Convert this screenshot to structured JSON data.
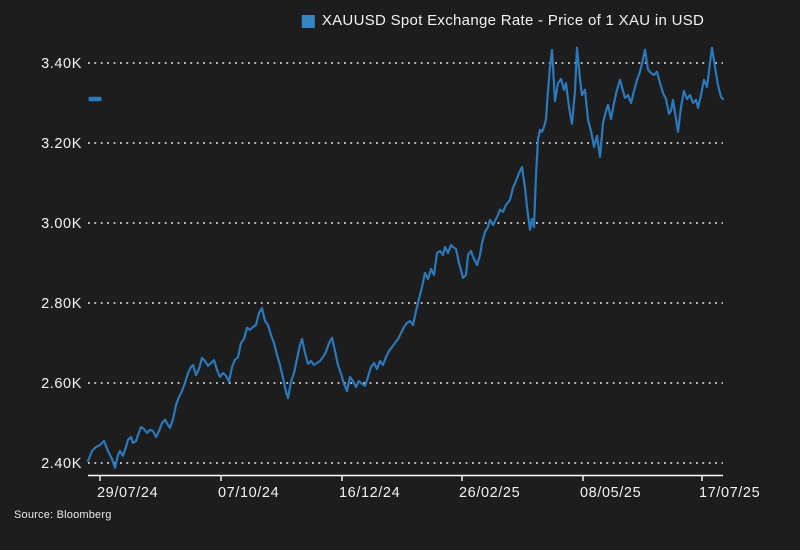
{
  "title": {
    "legend_label": "XAUUSD Spot Exchange Rate - Price of 1 XAU in USD"
  },
  "source": "Source: Bloomberg",
  "colors": {
    "background": "#1d1d1e",
    "line": "#2a79bb",
    "legend_swatch": "#3585c4",
    "text": "#f2f2f2",
    "grid": "#ffffff",
    "axis": "#ffffff",
    "last_value_marker": "#2a79bb"
  },
  "chart_data": {
    "type": "line",
    "title": "XAUUSD Spot Exchange Rate - Price of 1 XAU in USD",
    "xlabel": "",
    "ylabel": "",
    "unit": "K USD per 1 XAU",
    "grid": "horizontal-dotted",
    "legend_position": "top-center",
    "ylim": [
      2.37,
      3.46
    ],
    "y_ticks": [
      {
        "label": "3.40K",
        "value": 3.4
      },
      {
        "label": "3.20K",
        "value": 3.2
      },
      {
        "label": "3.00K",
        "value": 3.0
      },
      {
        "label": "2.80K",
        "value": 2.8
      },
      {
        "label": "2.60K",
        "value": 2.6
      },
      {
        "label": "2.40K",
        "value": 2.4
      }
    ],
    "x_ticks": [
      {
        "label": "29/07/24",
        "px": 100
      },
      {
        "label": "07/10/24",
        "px": 221
      },
      {
        "label": "16/12/24",
        "px": 342
      },
      {
        "label": "26/02/25",
        "px": 462
      },
      {
        "label": "08/05/25",
        "px": 583
      },
      {
        "label": "17/07/25",
        "px": 702
      }
    ],
    "last_value_marker": 3.31,
    "series": [
      {
        "name": "XAUUSD Spot Exchange Rate - Price of 1 XAU in USD",
        "points_format": "[x_px_on_time_axis, price_in_K_USD]",
        "points": [
          [
            88,
            2.405
          ],
          [
            92,
            2.43
          ],
          [
            96,
            2.44
          ],
          [
            100,
            2.445
          ],
          [
            104,
            2.455
          ],
          [
            108,
            2.43
          ],
          [
            112,
            2.41
          ],
          [
            115,
            2.388
          ],
          [
            118,
            2.42
          ],
          [
            120,
            2.43
          ],
          [
            123,
            2.418
          ],
          [
            126,
            2.44
          ],
          [
            128,
            2.458
          ],
          [
            131,
            2.465
          ],
          [
            133,
            2.45
          ],
          [
            136,
            2.455
          ],
          [
            138,
            2.47
          ],
          [
            141,
            2.49
          ],
          [
            144,
            2.485
          ],
          [
            147,
            2.475
          ],
          [
            150,
            2.483
          ],
          [
            153,
            2.48
          ],
          [
            156,
            2.465
          ],
          [
            159,
            2.48
          ],
          [
            162,
            2.5
          ],
          [
            165,
            2.508
          ],
          [
            168,
            2.495
          ],
          [
            170,
            2.488
          ],
          [
            173,
            2.51
          ],
          [
            176,
            2.545
          ],
          [
            179,
            2.565
          ],
          [
            182,
            2.58
          ],
          [
            185,
            2.6
          ],
          [
            188,
            2.625
          ],
          [
            191,
            2.64
          ],
          [
            193,
            2.645
          ],
          [
            196,
            2.62
          ],
          [
            199,
            2.635
          ],
          [
            202,
            2.663
          ],
          [
            205,
            2.655
          ],
          [
            208,
            2.643
          ],
          [
            211,
            2.65
          ],
          [
            214,
            2.657
          ],
          [
            217,
            2.633
          ],
          [
            220,
            2.615
          ],
          [
            223,
            2.625
          ],
          [
            226,
            2.618
          ],
          [
            229,
            2.603
          ],
          [
            232,
            2.64
          ],
          [
            235,
            2.658
          ],
          [
            238,
            2.665
          ],
          [
            241,
            2.7
          ],
          [
            244,
            2.71
          ],
          [
            247,
            2.738
          ],
          [
            250,
            2.733
          ],
          [
            253,
            2.74
          ],
          [
            256,
            2.745
          ],
          [
            259,
            2.775
          ],
          [
            262,
            2.787
          ],
          [
            265,
            2.755
          ],
          [
            268,
            2.745
          ],
          [
            271,
            2.72
          ],
          [
            274,
            2.7
          ],
          [
            277,
            2.67
          ],
          [
            280,
            2.645
          ],
          [
            283,
            2.613
          ],
          [
            286,
            2.578
          ],
          [
            288,
            2.562
          ],
          [
            291,
            2.603
          ],
          [
            294,
            2.625
          ],
          [
            297,
            2.66
          ],
          [
            300,
            2.695
          ],
          [
            302,
            2.71
          ],
          [
            305,
            2.675
          ],
          [
            308,
            2.648
          ],
          [
            311,
            2.655
          ],
          [
            314,
            2.645
          ],
          [
            317,
            2.65
          ],
          [
            320,
            2.655
          ],
          [
            323,
            2.665
          ],
          [
            326,
            2.678
          ],
          [
            329,
            2.7
          ],
          [
            332,
            2.713
          ],
          [
            335,
            2.68
          ],
          [
            338,
            2.645
          ],
          [
            341,
            2.623
          ],
          [
            344,
            2.598
          ],
          [
            347,
            2.58
          ],
          [
            350,
            2.615
          ],
          [
            353,
            2.605
          ],
          [
            356,
            2.59
          ],
          [
            359,
            2.605
          ],
          [
            362,
            2.598
          ],
          [
            365,
            2.593
          ],
          [
            368,
            2.615
          ],
          [
            371,
            2.64
          ],
          [
            374,
            2.65
          ],
          [
            377,
            2.635
          ],
          [
            380,
            2.655
          ],
          [
            383,
            2.645
          ],
          [
            386,
            2.665
          ],
          [
            389,
            2.68
          ],
          [
            392,
            2.69
          ],
          [
            395,
            2.7
          ],
          [
            398,
            2.71
          ],
          [
            401,
            2.725
          ],
          [
            404,
            2.74
          ],
          [
            407,
            2.75
          ],
          [
            410,
            2.755
          ],
          [
            413,
            2.745
          ],
          [
            416,
            2.78
          ],
          [
            419,
            2.81
          ],
          [
            422,
            2.84
          ],
          [
            425,
            2.875
          ],
          [
            428,
            2.86
          ],
          [
            431,
            2.885
          ],
          [
            434,
            2.87
          ],
          [
            437,
            2.925
          ],
          [
            440,
            2.93
          ],
          [
            443,
            2.92
          ],
          [
            445,
            2.94
          ],
          [
            448,
            2.925
          ],
          [
            451,
            2.945
          ],
          [
            453,
            2.94
          ],
          [
            456,
            2.935
          ],
          [
            459,
            2.9
          ],
          [
            463,
            2.863
          ],
          [
            466,
            2.87
          ],
          [
            468,
            2.92
          ],
          [
            471,
            2.93
          ],
          [
            474,
            2.91
          ],
          [
            477,
            2.895
          ],
          [
            480,
            2.92
          ],
          [
            482,
            2.95
          ],
          [
            485,
            2.978
          ],
          [
            488,
            2.99
          ],
          [
            490,
            3.008
          ],
          [
            493,
            2.995
          ],
          [
            497,
            3.015
          ],
          [
            500,
            3.033
          ],
          [
            503,
            3.028
          ],
          [
            506,
            3.045
          ],
          [
            510,
            3.058
          ],
          [
            513,
            3.088
          ],
          [
            516,
            3.105
          ],
          [
            519,
            3.125
          ],
          [
            522,
            3.14
          ],
          [
            525,
            3.088
          ],
          [
            527,
            3.04
          ],
          [
            530,
            2.983
          ],
          [
            532,
            3.01
          ],
          [
            534,
            2.99
          ],
          [
            536,
            3.12
          ],
          [
            538,
            3.21
          ],
          [
            540,
            3.233
          ],
          [
            542,
            3.228
          ],
          [
            544,
            3.24
          ],
          [
            546,
            3.26
          ],
          [
            548,
            3.33
          ],
          [
            550,
            3.39
          ],
          [
            552,
            3.433
          ],
          [
            555,
            3.305
          ],
          [
            558,
            3.35
          ],
          [
            561,
            3.36
          ],
          [
            564,
            3.333
          ],
          [
            566,
            3.35
          ],
          [
            569,
            3.29
          ],
          [
            572,
            3.248
          ],
          [
            575,
            3.33
          ],
          [
            577,
            3.438
          ],
          [
            580,
            3.36
          ],
          [
            582,
            3.32
          ],
          [
            585,
            3.333
          ],
          [
            588,
            3.258
          ],
          [
            591,
            3.23
          ],
          [
            594,
            3.19
          ],
          [
            597,
            3.218
          ],
          [
            600,
            3.165
          ],
          [
            603,
            3.25
          ],
          [
            606,
            3.28
          ],
          [
            608,
            3.295
          ],
          [
            611,
            3.26
          ],
          [
            614,
            3.3
          ],
          [
            617,
            3.333
          ],
          [
            620,
            3.358
          ],
          [
            623,
            3.33
          ],
          [
            625,
            3.313
          ],
          [
            628,
            3.32
          ],
          [
            631,
            3.3
          ],
          [
            634,
            3.33
          ],
          [
            637,
            3.358
          ],
          [
            640,
            3.378
          ],
          [
            643,
            3.41
          ],
          [
            645,
            3.433
          ],
          [
            648,
            3.383
          ],
          [
            651,
            3.375
          ],
          [
            654,
            3.37
          ],
          [
            657,
            3.378
          ],
          [
            660,
            3.35
          ],
          [
            663,
            3.325
          ],
          [
            666,
            3.31
          ],
          [
            669,
            3.273
          ],
          [
            671,
            3.28
          ],
          [
            673,
            3.308
          ],
          [
            676,
            3.26
          ],
          [
            678,
            3.228
          ],
          [
            681,
            3.29
          ],
          [
            684,
            3.33
          ],
          [
            687,
            3.31
          ],
          [
            690,
            3.32
          ],
          [
            693,
            3.3
          ],
          [
            696,
            3.308
          ],
          [
            698,
            3.288
          ],
          [
            701,
            3.32
          ],
          [
            704,
            3.358
          ],
          [
            707,
            3.34
          ],
          [
            710,
            3.4
          ],
          [
            712,
            3.438
          ],
          [
            715,
            3.39
          ],
          [
            718,
            3.345
          ],
          [
            721,
            3.315
          ],
          [
            723,
            3.31
          ]
        ]
      }
    ]
  }
}
